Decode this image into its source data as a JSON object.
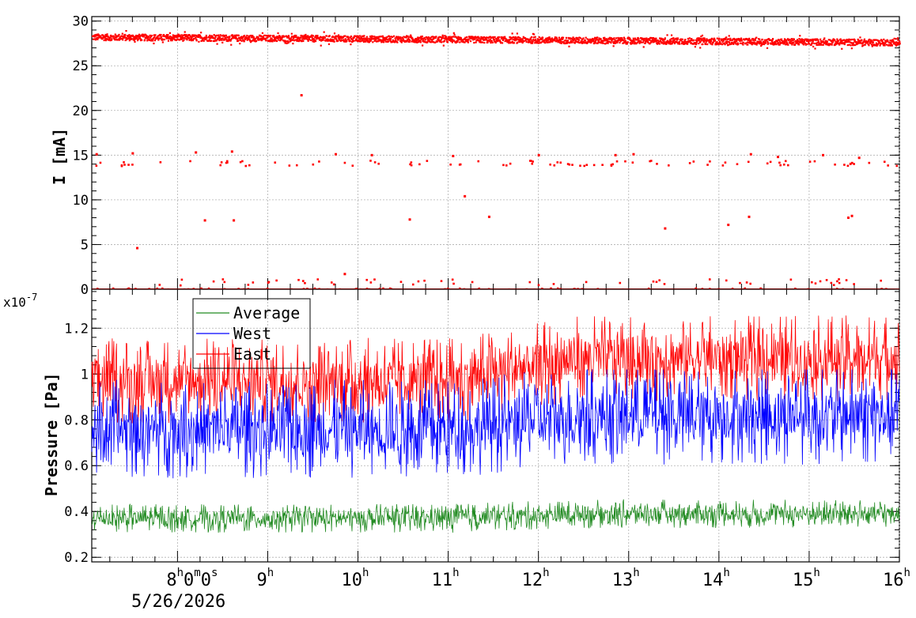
{
  "chart_data": [
    {
      "id": "current",
      "type": "scatter",
      "ylabel": "I [mA]",
      "ylim": [
        0,
        30.5
      ],
      "yticks": [
        0,
        5,
        10,
        15,
        20,
        25,
        30
      ],
      "grid": true,
      "x_time_range_hours": [
        7.05,
        16.0
      ],
      "series": [
        {
          "color": "#ff0000",
          "bands": [
            {
              "level": 28.2,
              "from_h": 7.05,
              "to_h": 16.0,
              "trend_end": 27.6,
              "spread": 0.35
            }
          ],
          "points": [
            {
              "t": 7.55,
              "v": 4.6
            },
            {
              "t": 8.3,
              "v": 7.7
            },
            {
              "t": 8.62,
              "v": 7.7
            },
            {
              "t": 9.37,
              "v": 21.7
            },
            {
              "t": 10.57,
              "v": 7.8
            },
            {
              "t": 11.18,
              "v": 10.4
            },
            {
              "t": 11.45,
              "v": 8.1
            },
            {
              "t": 13.4,
              "v": 6.8
            },
            {
              "t": 14.1,
              "v": 7.2
            },
            {
              "t": 14.33,
              "v": 8.1
            },
            {
              "t": 15.43,
              "v": 8.0
            },
            {
              "t": 15.47,
              "v": 8.2
            },
            {
              "t": 9.85,
              "v": 1.7
            },
            {
              "t": 7.1,
              "v": 15.1
            },
            {
              "t": 7.5,
              "v": 15.2
            },
            {
              "t": 8.2,
              "v": 15.3
            },
            {
              "t": 8.6,
              "v": 15.4
            },
            {
              "t": 9.75,
              "v": 15.1
            },
            {
              "t": 10.15,
              "v": 15.0
            },
            {
              "t": 11.05,
              "v": 14.9
            },
            {
              "t": 12.0,
              "v": 15.0
            },
            {
              "t": 12.85,
              "v": 15.0
            },
            {
              "t": 13.05,
              "v": 15.1
            },
            {
              "t": 14.35,
              "v": 15.1
            },
            {
              "t": 14.65,
              "v": 14.8
            },
            {
              "t": 15.15,
              "v": 15.0
            },
            {
              "t": 15.55,
              "v": 14.7
            }
          ],
          "scatter_clusters": [
            {
              "level": 14.1,
              "count": 95,
              "spread": 0.3
            },
            {
              "level": 0.0,
              "count": 160,
              "spread": 0.12
            },
            {
              "level": 0.8,
              "count": 55,
              "spread": 0.35
            }
          ]
        }
      ]
    },
    {
      "id": "pressure",
      "type": "line",
      "ylabel": "Pressure [Pa]",
      "multiplier": "x10",
      "multiplier_exp": "-7",
      "ylim": [
        0.18,
        1.37
      ],
      "yticks": [
        "0.2",
        "0.4",
        "0.6",
        "0.8",
        "1",
        "1.2"
      ],
      "grid": true,
      "legend_position": "top-left",
      "series": [
        {
          "name": "Average",
          "color": "#228b22",
          "baseline": 0.37,
          "low": 0.28,
          "high": 0.42,
          "late_baseline": 0.39
        },
        {
          "name": "West",
          "color": "#0000ff",
          "baseline": 0.76,
          "low": 0.5,
          "high": 0.98,
          "late_baseline": 0.82
        },
        {
          "name": "East",
          "color": "#ff0000",
          "baseline": 0.97,
          "low": 0.8,
          "high": 1.22,
          "late_baseline": 1.07
        }
      ]
    }
  ],
  "x_axis": {
    "ticks": [
      {
        "hour": 8,
        "main": "8",
        "suffix": "h0m0s",
        "sub": "5/26/2026"
      },
      {
        "hour": 9,
        "main": "9",
        "suffix": "h"
      },
      {
        "hour": 10,
        "main": "10",
        "suffix": "h"
      },
      {
        "hour": 11,
        "main": "11",
        "suffix": "h"
      },
      {
        "hour": 12,
        "main": "12",
        "suffix": "h"
      },
      {
        "hour": 13,
        "main": "13",
        "suffix": "h"
      },
      {
        "hour": 14,
        "main": "14",
        "suffix": "h"
      },
      {
        "hour": 15,
        "main": "15",
        "suffix": "h"
      },
      {
        "hour": 16,
        "main": "16",
        "suffix": "h"
      }
    ]
  }
}
